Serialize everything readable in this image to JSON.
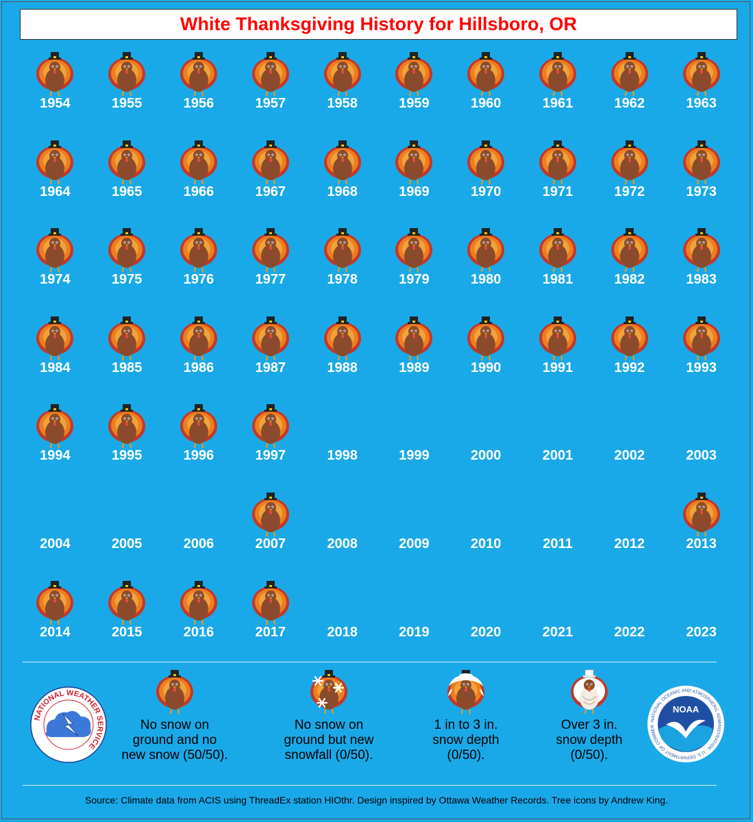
{
  "title": "White Thanksgiving History for Hillsboro, OR",
  "chart_data": {
    "type": "table",
    "title": "White Thanksgiving History for Hillsboro, OR",
    "categories_legend": [
      {
        "key": "none",
        "label": "No snow on ground and no new snow (50/50).",
        "count": 50
      },
      {
        "key": "newsnow",
        "label": "No snow on ground but new snowfall (0/50).",
        "count": 0
      },
      {
        "key": "1to3",
        "label": "1 in to 3 in. snow depth (0/50).",
        "count": 0
      },
      {
        "key": "over3",
        "label": "Over 3 in. snow depth (0/50).",
        "count": 0
      }
    ],
    "years": [
      {
        "year": "1954",
        "category": "none"
      },
      {
        "year": "1955",
        "category": "none"
      },
      {
        "year": "1956",
        "category": "none"
      },
      {
        "year": "1957",
        "category": "none"
      },
      {
        "year": "1958",
        "category": "none"
      },
      {
        "year": "1959",
        "category": "none"
      },
      {
        "year": "1960",
        "category": "none"
      },
      {
        "year": "1961",
        "category": "none"
      },
      {
        "year": "1962",
        "category": "none"
      },
      {
        "year": "1963",
        "category": "none"
      },
      {
        "year": "1964",
        "category": "none"
      },
      {
        "year": "1965",
        "category": "none"
      },
      {
        "year": "1966",
        "category": "none"
      },
      {
        "year": "1967",
        "category": "none"
      },
      {
        "year": "1968",
        "category": "none"
      },
      {
        "year": "1969",
        "category": "none"
      },
      {
        "year": "1970",
        "category": "none"
      },
      {
        "year": "1971",
        "category": "none"
      },
      {
        "year": "1972",
        "category": "none"
      },
      {
        "year": "1973",
        "category": "none"
      },
      {
        "year": "1974",
        "category": "none"
      },
      {
        "year": "1975",
        "category": "none"
      },
      {
        "year": "1976",
        "category": "none"
      },
      {
        "year": "1977",
        "category": "none"
      },
      {
        "year": "1978",
        "category": "none"
      },
      {
        "year": "1979",
        "category": "none"
      },
      {
        "year": "1980",
        "category": "none"
      },
      {
        "year": "1981",
        "category": "none"
      },
      {
        "year": "1982",
        "category": "none"
      },
      {
        "year": "1983",
        "category": "none"
      },
      {
        "year": "1984",
        "category": "none"
      },
      {
        "year": "1985",
        "category": "none"
      },
      {
        "year": "1986",
        "category": "none"
      },
      {
        "year": "1987",
        "category": "none"
      },
      {
        "year": "1988",
        "category": "none"
      },
      {
        "year": "1989",
        "category": "none"
      },
      {
        "year": "1990",
        "category": "none"
      },
      {
        "year": "1991",
        "category": "none"
      },
      {
        "year": "1992",
        "category": "none"
      },
      {
        "year": "1993",
        "category": "none"
      },
      {
        "year": "1994",
        "category": "none"
      },
      {
        "year": "1995",
        "category": "none"
      },
      {
        "year": "1996",
        "category": "none"
      },
      {
        "year": "1997",
        "category": "none"
      },
      {
        "year": "1998",
        "category": "missing"
      },
      {
        "year": "1999",
        "category": "missing"
      },
      {
        "year": "2000",
        "category": "missing"
      },
      {
        "year": "2001",
        "category": "missing"
      },
      {
        "year": "2002",
        "category": "missing"
      },
      {
        "year": "2003",
        "category": "missing"
      },
      {
        "year": "2004",
        "category": "missing"
      },
      {
        "year": "2005",
        "category": "missing"
      },
      {
        "year": "2006",
        "category": "missing"
      },
      {
        "year": "2007",
        "category": "none"
      },
      {
        "year": "2008",
        "category": "missing"
      },
      {
        "year": "2009",
        "category": "missing"
      },
      {
        "year": "2010",
        "category": "missing"
      },
      {
        "year": "2011",
        "category": "missing"
      },
      {
        "year": "2012",
        "category": "missing"
      },
      {
        "year": "2013",
        "category": "none"
      },
      {
        "year": "2014",
        "category": "none"
      },
      {
        "year": "2015",
        "category": "none"
      },
      {
        "year": "2016",
        "category": "none"
      },
      {
        "year": "2017",
        "category": "none"
      },
      {
        "year": "2018",
        "category": "missing"
      },
      {
        "year": "2019",
        "category": "missing"
      },
      {
        "year": "2020",
        "category": "missing"
      },
      {
        "year": "2021",
        "category": "missing"
      },
      {
        "year": "2022",
        "category": "missing"
      },
      {
        "year": "2023",
        "category": "missing"
      }
    ]
  },
  "legend": {
    "none": "No snow on\nground and no\nnew snow (50/50).",
    "newsnow": "No snow on\nground but new\nsnowfall (0/50).",
    "1to3": "1 in to 3 in.\nsnow depth\n(0/50).",
    "over3": "Over 3 in.\nsnow depth\n(0/50)."
  },
  "logos": {
    "nws": "NATIONAL WEATHER SERVICE",
    "noaa": "NOAA",
    "noaa_ring": "NATIONAL OCEANIC AND ATMOSPHERIC ADMINISTRATION · U.S. DEPARTMENT OF COMMERCE"
  },
  "source": "Source: Climate data from ACIS using ThreadEx station HIOthr. Design inspired by Ottawa Weather Records. Tree icons by Andrew King.",
  "colors": {
    "background": "#1aa9e8",
    "title": "#ff0000",
    "year_text": "#ffffff"
  }
}
